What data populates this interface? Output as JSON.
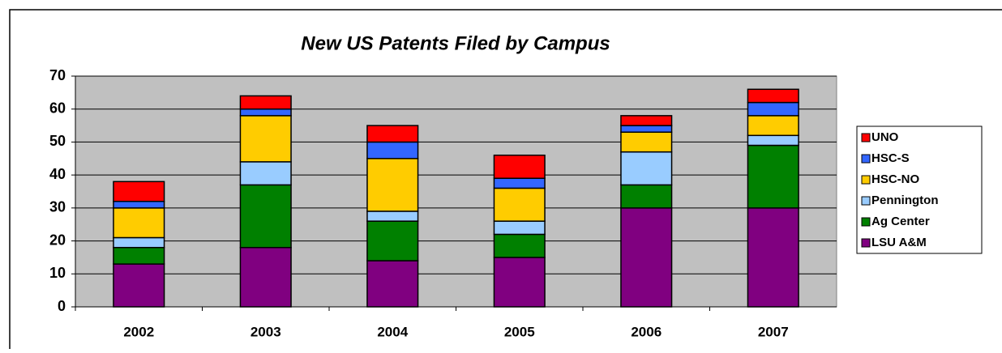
{
  "chart_data": {
    "type": "stacked_bar",
    "title": "New US Patents Filed by Campus",
    "categories": [
      "2002",
      "2003",
      "2004",
      "2005",
      "2006",
      "2007"
    ],
    "series": [
      {
        "name": "LSU A&M",
        "color": "#800080",
        "values": [
          13,
          18,
          14,
          15,
          30,
          30
        ]
      },
      {
        "name": "Ag Center",
        "color": "#008000",
        "values": [
          5,
          19,
          12,
          7,
          7,
          19
        ]
      },
      {
        "name": "Pennington",
        "color": "#99ccff",
        "values": [
          3,
          7,
          3,
          4,
          10,
          3
        ]
      },
      {
        "name": "HSC-NO",
        "color": "#ffcc00",
        "values": [
          9,
          14,
          16,
          10,
          6,
          6
        ]
      },
      {
        "name": "HSC-S",
        "color": "#3366ff",
        "values": [
          2,
          2,
          5,
          3,
          2,
          4
        ]
      },
      {
        "name": "UNO",
        "color": "#ff0000",
        "values": [
          6,
          4,
          5,
          7,
          3,
          4
        ]
      }
    ],
    "ylim": [
      0,
      70
    ],
    "yticks": [
      0,
      10,
      20,
      30,
      40,
      50,
      60,
      70
    ],
    "grid": true,
    "legend": "right"
  }
}
